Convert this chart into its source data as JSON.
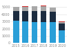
{
  "years": [
    "2015",
    "2016",
    "2017",
    "2018",
    "2019",
    "2020"
  ],
  "blue": [
    3100,
    3000,
    2900,
    2900,
    2900,
    1800
  ],
  "navy": [
    1400,
    1500,
    1600,
    1600,
    1500,
    900
  ],
  "gray": [
    500,
    550,
    600,
    650,
    500,
    200
  ],
  "red": [
    60,
    70,
    80,
    90,
    60,
    80
  ],
  "colors": {
    "blue": "#2B9FD8",
    "navy": "#1C2C40",
    "gray": "#A8A8A8",
    "red": "#CC2222"
  },
  "bg_color": "#ffffff",
  "grid_color": "#e0e0e0",
  "tick_color": "#888888",
  "bar_width": 0.65,
  "ylim": [
    0,
    5800
  ],
  "yticks": [
    0,
    1000,
    2000,
    3000,
    4000,
    5000
  ],
  "ylabel_fontsize": 3.5,
  "xlabel_fontsize": 3.5
}
